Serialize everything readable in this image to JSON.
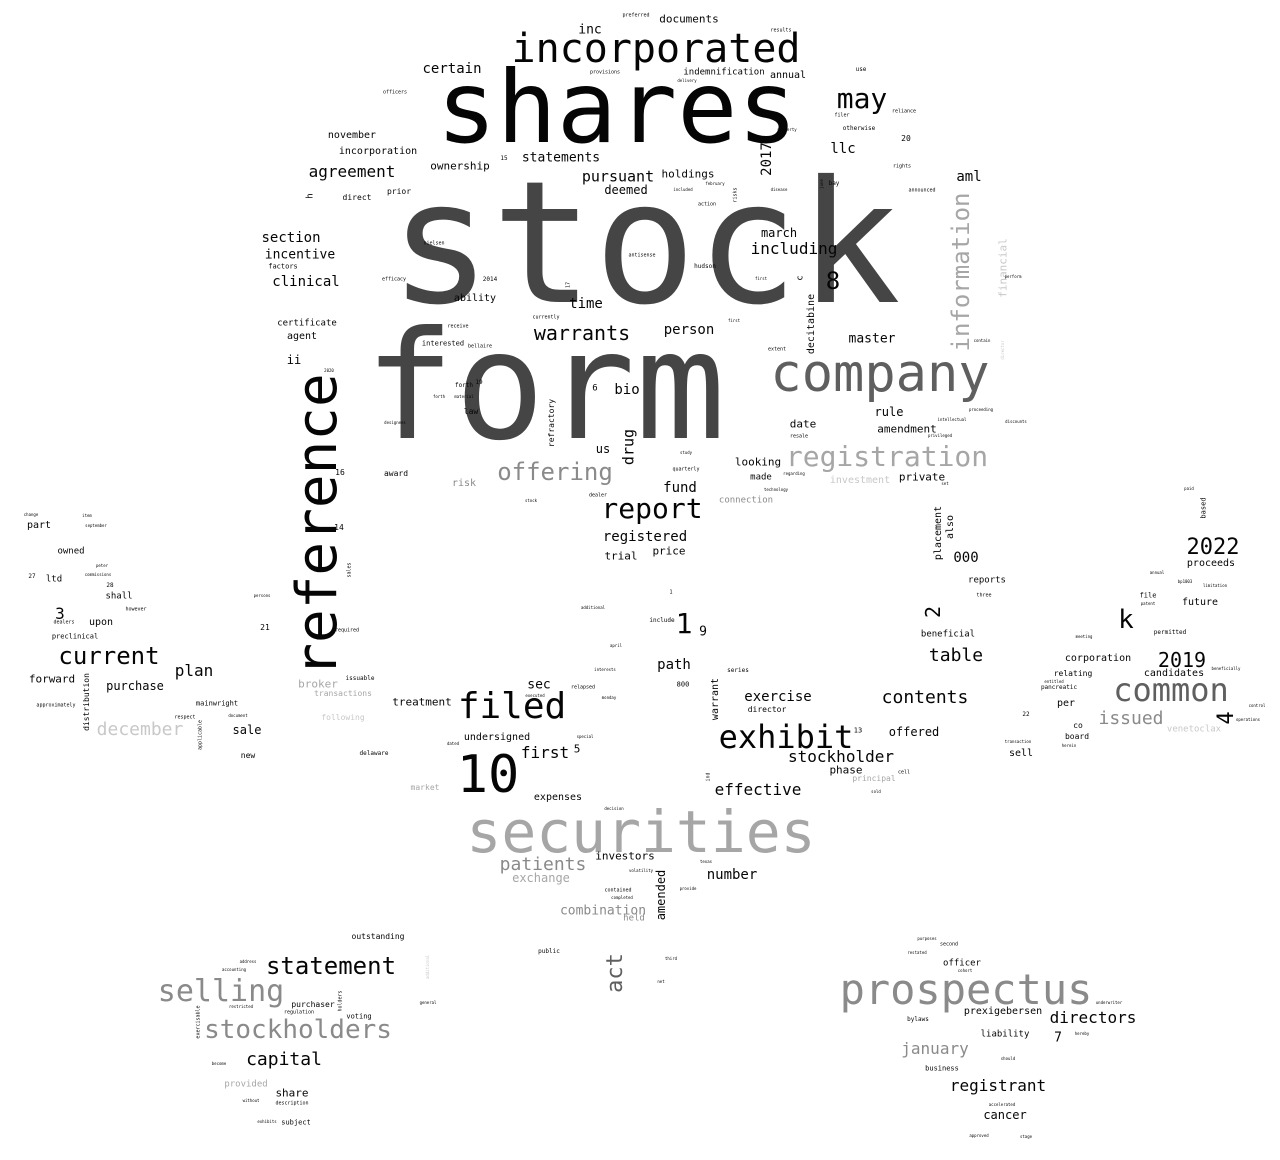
{
  "words": {
    "stock": "stock",
    "form": "form",
    "shares": "shares",
    "incorporated": "incorporated",
    "reference": "reference",
    "company": "company",
    "securities": "securities",
    "prospectus": "prospectus",
    "registration": "registration",
    "information": "information",
    "filed": "filed",
    "exhibit": "exhibit",
    "report": "report",
    "offering": "offering",
    "selling": "selling",
    "stockholders": "stockholders",
    "statement": "statement",
    "common": "common",
    "current": "current",
    "ten": "10",
    "may": "may",
    "warrants": "warrants",
    "table": "table",
    "contents": "contents",
    "directors": "directors",
    "registrant": "registrant",
    "capital": "capital",
    "stockholder": "stockholder",
    "effective": "effective",
    "patients": "patients",
    "year2022": "2022",
    "year2019": "2019",
    "plan": "plan",
    "first": "first",
    "act": "act",
    "k": "k",
    "issued": "issued",
    "december": "december",
    "january": "january",
    "agreement": "agreement",
    "certain": "certain",
    "section": "section",
    "clinical": "clinical",
    "incentive": "incentive",
    "pursuant": "pursuant",
    "including": "including",
    "statements": "statements",
    "drug": "drug",
    "bio": "bio",
    "llc": "llc",
    "inc": "inc",
    "documents": "documents",
    "aml": "aml",
    "master": "master",
    "rule": "rule",
    "amendment": "amendment",
    "exercise": "exercise",
    "offered": "offered",
    "phase": "phase",
    "path": "path",
    "sec": "sec",
    "fund": "fund",
    "registered": "registered",
    "trial": "trial",
    "price": "price",
    "number": "number",
    "investors": "investors",
    "combination": "combination",
    "amended": "amended",
    "exchange": "exchange",
    "expenses": "expenses",
    "undersigned": "undersigned",
    "treatment": "treatment",
    "purchase": "purchase",
    "sale": "sale",
    "broker": "broker",
    "forward": "forward",
    "person": "person",
    "time": "time",
    "ability": "ability",
    "march": "march",
    "holdings": "holdings",
    "deemed": "deemed",
    "ownership": "ownership",
    "incorporation": "incorporation",
    "november": "november",
    "date": "date",
    "looking": "looking",
    "made": "made",
    "private": "private",
    "us": "us",
    "financial": "financial",
    "decitabine": "decitabine",
    "year2017": "2017",
    "eight": "8",
    "one": "1",
    "nine": "9",
    "two": "2",
    "three": "3",
    "four": "4",
    "five": "5",
    "seven": "7",
    "six": "6",
    "thousand": "000",
    "proceeds": "proceeds",
    "future": "future",
    "reports": "reports",
    "placement": "placement",
    "also": "also",
    "beneficial": "beneficial",
    "corporation": "corporation",
    "candidates": "candidates",
    "relating": "relating",
    "per": "per",
    "board": "board",
    "sell": "sell",
    "venetoclax": "venetoclax",
    "warrant": "warrant",
    "director": "director",
    "outstanding": "outstanding",
    "purchaser": "purchaser",
    "voting": "voting",
    "share": "share",
    "provided": "provided",
    "subject": "subject",
    "officer": "officer",
    "prexigebersen": "prexigebersen",
    "liability": "liability",
    "business": "business",
    "cancer": "cancer",
    "bylaws": "bylaws",
    "part": "part",
    "owned": "owned",
    "ltd": "ltd",
    "shall": "shall",
    "upon": "upon",
    "preclinical": "preclinical",
    "distribution": "distribution",
    "new": "new",
    "mainwright": "mainwright",
    "annual": "annual",
    "indemnification": "indemnification",
    "agent": "agent",
    "certificate": "certificate",
    "ii": "ii",
    "factors": "factors",
    "direct": "direct",
    "prior": "prior",
    "law": "law",
    "risk": "risk",
    "award": "award",
    "interested": "interested",
    "refractory": "refractory",
    "connection": "connection",
    "investment": "investment",
    "held": "held",
    "market": "market",
    "following": "following",
    "transactions": "transactions",
    "delaware": "delaware",
    "issuable": "issuable",
    "principal": "principal",
    "file": "file",
    "permitted": "permitted",
    "based": "based",
    "pancreatic": "pancreatic",
    "co": "co",
    "twenty": "20",
    "twentyone": "21",
    "fourteen": "14",
    "sixteen": "16",
    "hundred800": "800",
    "h": "h",
    "c": "c",
    "include": "include",
    "ind": "ind",
    "otherwise": "otherwise",
    "bay": "bay",
    "use": "use",
    "preferred": "preferred",
    "results": "results",
    "rights": "rights",
    "announced": "announced",
    "hudson": "hudson",
    "antisense": "antisense",
    "nielsen": "nielsen",
    "efficacy": "efficacy",
    "bellaire": "bellaire",
    "extent": "extent",
    "resale": "resale",
    "quarterly": "quarterly",
    "study": "study",
    "dealer": "dealer",
    "item": "item",
    "however": "however",
    "respect": "respect",
    "approximately": "approximately",
    "public": "public",
    "general": "general",
    "second": "second",
    "purposes": "purposes",
    "approved": "approved",
    "stage": "stage",
    "accelerated": "accelerated",
    "series": "series",
    "contained": "contained",
    "texas": "texas",
    "cohort": "cohort",
    "restated": "restated",
    "hereby": "hereby",
    "underwriter": "underwriter",
    "regarding": "regarding",
    "technology": "technology",
    "completed": "completed",
    "sales": "sales",
    "required": "required",
    "applicable": "applicable",
    "document": "document",
    "description": "description",
    "regulation": "regulation",
    "restricted": "restricted",
    "holders": "holders",
    "exercisable": "exercisable",
    "accounting": "accounting",
    "address": "address",
    "provisions": "provisions",
    "officers": "officers",
    "reliance": "reliance",
    "delivery": "delivery",
    "property": "property",
    "filer": "filer",
    "action": "action",
    "included": "included",
    "february": "february",
    "disease": "disease",
    "risks": "risks",
    "june": "june",
    "currently": "currently",
    "receive": "receive",
    "twentyfifteen": "2014",
    "fifteen": "15",
    "nineteen": "19",
    "twentytwo": "22",
    "thirteen": "13",
    "seventeen": "17",
    "designees": "designees",
    "forth": "forth",
    "material": "material",
    "relapsed": "relapsed",
    "additional": "additional",
    "april": "april",
    "special": "special",
    "dated": "dated",
    "monday": "monday",
    "interests": "interests",
    "executed": "executed",
    "persons": "persons",
    "peter": "peter",
    "commissions": "commissions",
    "dealers": "dealers",
    "september": "september",
    "twentyseven": "27",
    "twentyeight": "28",
    "change": "change",
    "limitation": "limitation",
    "bp1003": "bp1003",
    "three_lbl": "three",
    "pdf": "paid",
    "patent": "patent",
    "annual_small": "annual",
    "entitled": "entitled",
    "operations": "operations",
    "control": "control",
    "beneficially": "beneficially",
    "meeting": "meeting",
    "transaction": "transaction",
    "herein": "herein",
    "twentytwo2": "22",
    "twentytwenty": "2020",
    "perform": "perform",
    "contain": "contain",
    "intellectual": "intellectual",
    "proceeding": "proceeding",
    "discounts": "discounts",
    "prevailed": "privileged",
    "set": "set",
    "sold": "sold",
    "cell": "cell",
    "stock_small": "stock",
    "net": "net",
    "third": "third",
    "shouldnot": "should",
    "without": "without",
    "exhibits": "exhibits",
    "become": "become",
    "provide": "provide",
    "volatility": "volatility",
    "decision": "decision",
    "fist": "first"
  }
}
